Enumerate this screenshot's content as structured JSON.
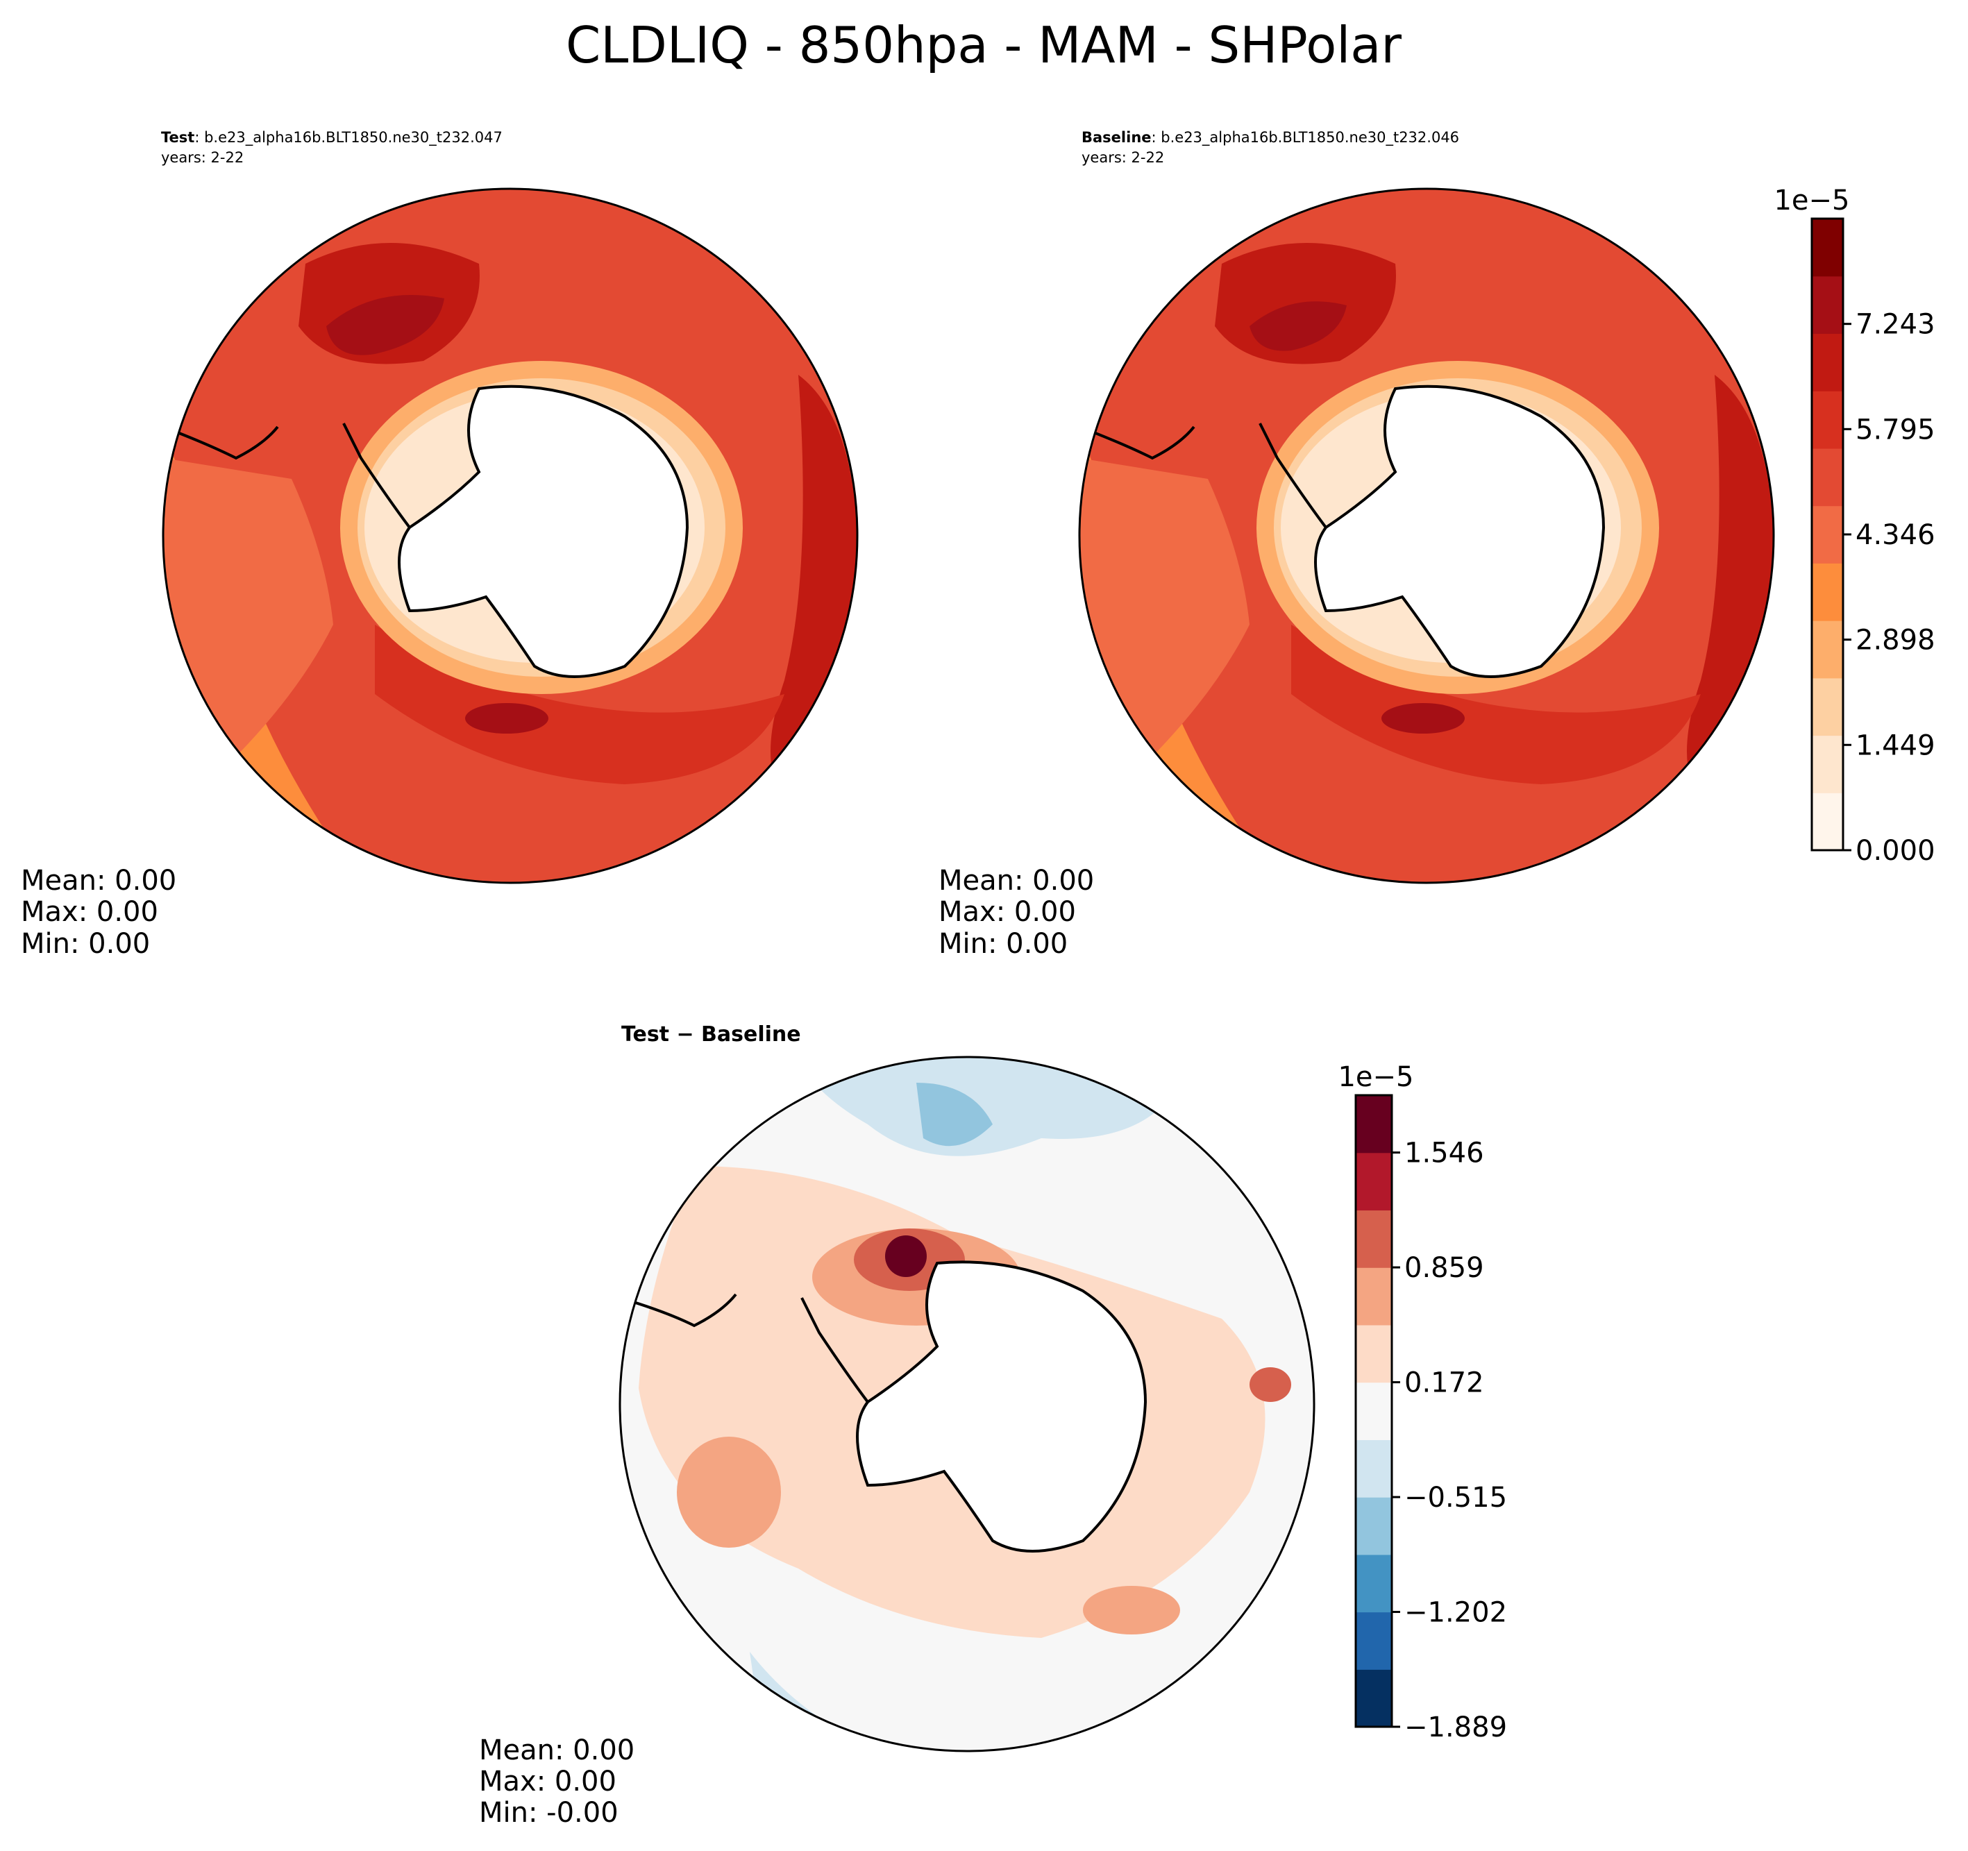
{
  "chart_data": {
    "type": "contour-map",
    "title": "CLDLIQ - 850hpa - MAM - SHPolar",
    "projection": "South Polar Stereographic",
    "panels": [
      {
        "id": "test",
        "label_bold": "Test",
        "label_rest": ": b.e23_alpha16b.BLT1850.ne30_t232.047",
        "years": "years: 2-22",
        "stats": {
          "mean": "Mean:  0.00",
          "max": "Max:  0.00",
          "min": "Min:  0.00"
        }
      },
      {
        "id": "baseline",
        "label_bold": "Baseline",
        "label_rest": ": b.e23_alpha16b.BLT1850.ne30_t232.046",
        "years": "years: 2-22",
        "stats": {
          "mean": "Mean:  0.00",
          "max": "Max:  0.00",
          "min": "Min:  0.00"
        }
      },
      {
        "id": "difference",
        "label": "Test − Baseline",
        "stats": {
          "mean": "Mean:  0.00",
          "max": "Max:  0.00",
          "min": "Min: -0.00"
        }
      }
    ],
    "colorbar_main": {
      "multiplier": "1e−5",
      "ticks": [
        "7.243",
        "5.795",
        "4.346",
        "2.898",
        "1.449",
        "0.000"
      ],
      "tick_values": [
        7.243,
        5.795,
        4.346,
        2.898,
        1.449,
        0.0
      ],
      "range": [
        0.0,
        8.692
      ],
      "levels": 11,
      "colors": [
        "#fff5eb",
        "#fee6ce",
        "#fdd0a2",
        "#fdae6b",
        "#fd8d3c",
        "#f16b45",
        "#e34a33",
        "#d7301f",
        "#c11a12",
        "#a50f15",
        "#7f0000"
      ]
    },
    "colorbar_diff": {
      "multiplier": "1e−5",
      "ticks": [
        "1.546",
        "0.859",
        "0.172",
        "−0.515",
        "−1.202",
        "−1.889"
      ],
      "tick_values": [
        1.546,
        0.859,
        0.172,
        -0.515,
        -1.202,
        -1.889
      ],
      "range": [
        -1.889,
        1.889
      ],
      "levels": 11,
      "colors": [
        "#053061",
        "#2166ac",
        "#4393c3",
        "#92c5de",
        "#d1e5f0",
        "#f7f7f7",
        "#fddbc7",
        "#f4a582",
        "#d6604d",
        "#b2182b",
        "#67001f"
      ]
    }
  }
}
